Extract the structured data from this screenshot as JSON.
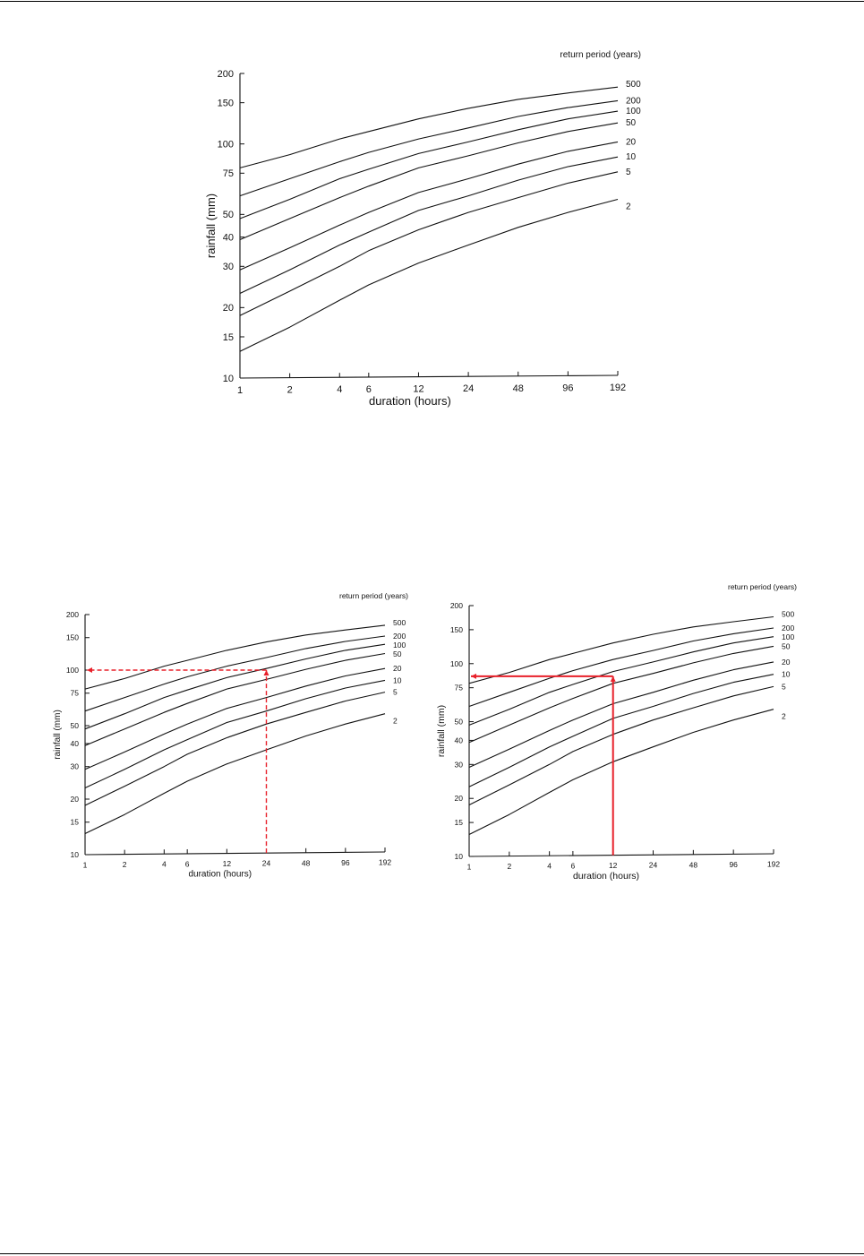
{
  "chart_data": [
    {
      "type": "line",
      "legend_title": "return period (years)",
      "xlabel": "duration (hours)",
      "ylabel": "rainfall (mm)",
      "x_scale": "log",
      "y_scale": "log",
      "xlim": [
        1,
        192
      ],
      "ylim": [
        10,
        200
      ],
      "x_ticks": [
        1,
        2,
        4,
        6,
        12,
        24,
        48,
        96,
        192
      ],
      "y_ticks": [
        10,
        15,
        20,
        30,
        40,
        50,
        75,
        100,
        150,
        200
      ],
      "x": [
        1,
        2,
        4,
        6,
        12,
        24,
        48,
        96,
        192
      ],
      "grid": false,
      "series": [
        {
          "name": "500",
          "values": [
            79,
            90,
            105,
            113,
            128,
            142,
            155,
            165,
            175
          ]
        },
        {
          "name": "200",
          "values": [
            60,
            71,
            84,
            92,
            105,
            117,
            131,
            143,
            153
          ]
        },
        {
          "name": "100",
          "values": [
            48,
            58,
            71,
            78,
            91,
            102,
            115,
            128,
            138
          ]
        },
        {
          "name": "50",
          "values": [
            39,
            48,
            59,
            66,
            79,
            89,
            101,
            113,
            123
          ]
        },
        {
          "name": "20",
          "values": [
            29,
            36,
            45,
            51,
            62,
            71,
            82,
            93,
            102
          ]
        },
        {
          "name": "10",
          "values": [
            23,
            29,
            37,
            42,
            52,
            60,
            70,
            80,
            88
          ]
        },
        {
          "name": "5",
          "values": [
            18.5,
            23.5,
            30,
            35,
            43,
            51,
            59,
            68,
            76
          ]
        },
        {
          "name": "2",
          "values": [
            13,
            16.5,
            21.5,
            25,
            31,
            37,
            44,
            51,
            58
          ]
        }
      ],
      "annotation": null
    },
    {
      "type": "line",
      "legend_title": "return period (years)",
      "xlabel": "duration (hours)",
      "ylabel": "rainfall (mm)",
      "x_scale": "log",
      "y_scale": "log",
      "xlim": [
        1,
        192
      ],
      "ylim": [
        10,
        200
      ],
      "x_ticks": [
        1,
        2,
        4,
        6,
        12,
        24,
        48,
        96,
        192
      ],
      "y_ticks": [
        10,
        15,
        20,
        30,
        40,
        50,
        75,
        100,
        150,
        200
      ],
      "x": [
        1,
        2,
        4,
        6,
        12,
        24,
        48,
        96,
        192
      ],
      "grid": false,
      "series": [
        {
          "name": "500",
          "values": [
            79,
            90,
            105,
            113,
            128,
            142,
            155,
            165,
            175
          ]
        },
        {
          "name": "200",
          "values": [
            60,
            71,
            84,
            92,
            105,
            117,
            131,
            143,
            153
          ]
        },
        {
          "name": "100",
          "values": [
            48,
            58,
            71,
            78,
            91,
            102,
            115,
            128,
            138
          ]
        },
        {
          "name": "50",
          "values": [
            39,
            48,
            59,
            66,
            79,
            89,
            101,
            113,
            123
          ]
        },
        {
          "name": "20",
          "values": [
            29,
            36,
            45,
            51,
            62,
            71,
            82,
            93,
            102
          ]
        },
        {
          "name": "10",
          "values": [
            23,
            29,
            37,
            42,
            52,
            60,
            70,
            80,
            88
          ]
        },
        {
          "name": "5",
          "values": [
            18.5,
            23.5,
            30,
            35,
            43,
            51,
            59,
            68,
            76
          ]
        },
        {
          "name": "2",
          "values": [
            13,
            16.5,
            21.5,
            25,
            31,
            37,
            44,
            51,
            58
          ]
        }
      ],
      "annotation": {
        "x": 24,
        "y": 100,
        "style": "dashed",
        "direction": "up-then-left",
        "color": "#e8202a"
      }
    },
    {
      "type": "line",
      "legend_title": "return period (years)",
      "xlabel": "duration (hours)",
      "ylabel": "rainfall (mm)",
      "x_scale": "log",
      "y_scale": "log",
      "xlim": [
        1,
        192
      ],
      "ylim": [
        10,
        200
      ],
      "x_ticks": [
        1,
        2,
        4,
        6,
        12,
        24,
        48,
        96,
        192
      ],
      "y_ticks": [
        10,
        15,
        20,
        30,
        40,
        50,
        75,
        100,
        150,
        200
      ],
      "x": [
        1,
        2,
        4,
        6,
        12,
        24,
        48,
        96,
        192
      ],
      "grid": false,
      "series": [
        {
          "name": "500",
          "values": [
            79,
            90,
            105,
            113,
            128,
            142,
            155,
            165,
            175
          ]
        },
        {
          "name": "200",
          "values": [
            60,
            71,
            84,
            92,
            105,
            117,
            131,
            143,
            153
          ]
        },
        {
          "name": "100",
          "values": [
            48,
            58,
            71,
            78,
            91,
            102,
            115,
            128,
            138
          ]
        },
        {
          "name": "50",
          "values": [
            39,
            48,
            59,
            66,
            79,
            89,
            101,
            113,
            123
          ]
        },
        {
          "name": "20",
          "values": [
            29,
            36,
            45,
            51,
            62,
            71,
            82,
            93,
            102
          ]
        },
        {
          "name": "10",
          "values": [
            23,
            29,
            37,
            42,
            52,
            60,
            70,
            80,
            88
          ]
        },
        {
          "name": "5",
          "values": [
            18.5,
            23.5,
            30,
            35,
            43,
            51,
            59,
            68,
            76
          ]
        },
        {
          "name": "2",
          "values": [
            13,
            16.5,
            21.5,
            25,
            31,
            37,
            44,
            51,
            58
          ]
        }
      ],
      "annotation": {
        "x": 12,
        "y": 86,
        "style": "solid",
        "direction": "up-then-left",
        "color": "#e8202a"
      }
    }
  ]
}
